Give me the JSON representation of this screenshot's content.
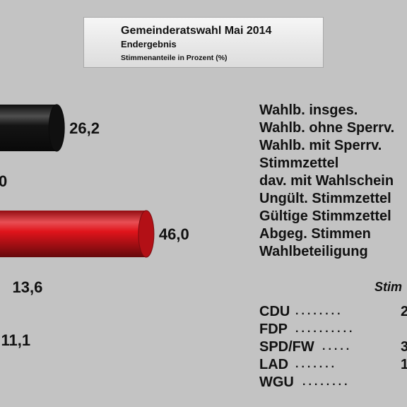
{
  "header": {
    "title": "Gemeinderatswahl Mai 2014",
    "subtitle": "Endergebnis",
    "note": "Stimmenanteile in Prozent (%)"
  },
  "chart_data": {
    "type": "bar",
    "orientation": "horizontal",
    "categories": [
      "CDU",
      "FDP",
      "SPD/FW",
      "LAD",
      "WGU"
    ],
    "values": [
      26.2,
      0,
      46.0,
      13.6,
      11.1
    ],
    "value_labels": [
      "26,2",
      "0",
      "46,0",
      "13,6",
      "11,1"
    ],
    "colors": [
      "#141414",
      "#ffd800",
      "#e0141b",
      "#9a22b3",
      "#b2bd2a"
    ],
    "xlim": [
      0,
      55
    ],
    "grid": false
  },
  "stats": {
    "labels": [
      "Wahlb. insges.",
      "Wahlb. ohne Sperrv.",
      "Wahlb. mit Sperrv.",
      "Stimmzettel",
      "dav. mit Wahlschein",
      "Ungült. Stimmzettel",
      "Gültige Stimmzettel",
      "Abgeg. Stimmen",
      "Wahlbeteiligung"
    ]
  },
  "stimmen": {
    "header": "Stim",
    "rows": [
      {
        "party": "CDU",
        "dots": "........",
        "value": "2"
      },
      {
        "party": "FDP",
        "dots": "..........",
        "value": ""
      },
      {
        "party": "SPD/FW",
        "dots": ".....",
        "value": "3"
      },
      {
        "party": "LAD",
        "dots": ".......",
        "value": "1"
      },
      {
        "party": "WGU",
        "dots": "........",
        "value": ""
      }
    ]
  }
}
